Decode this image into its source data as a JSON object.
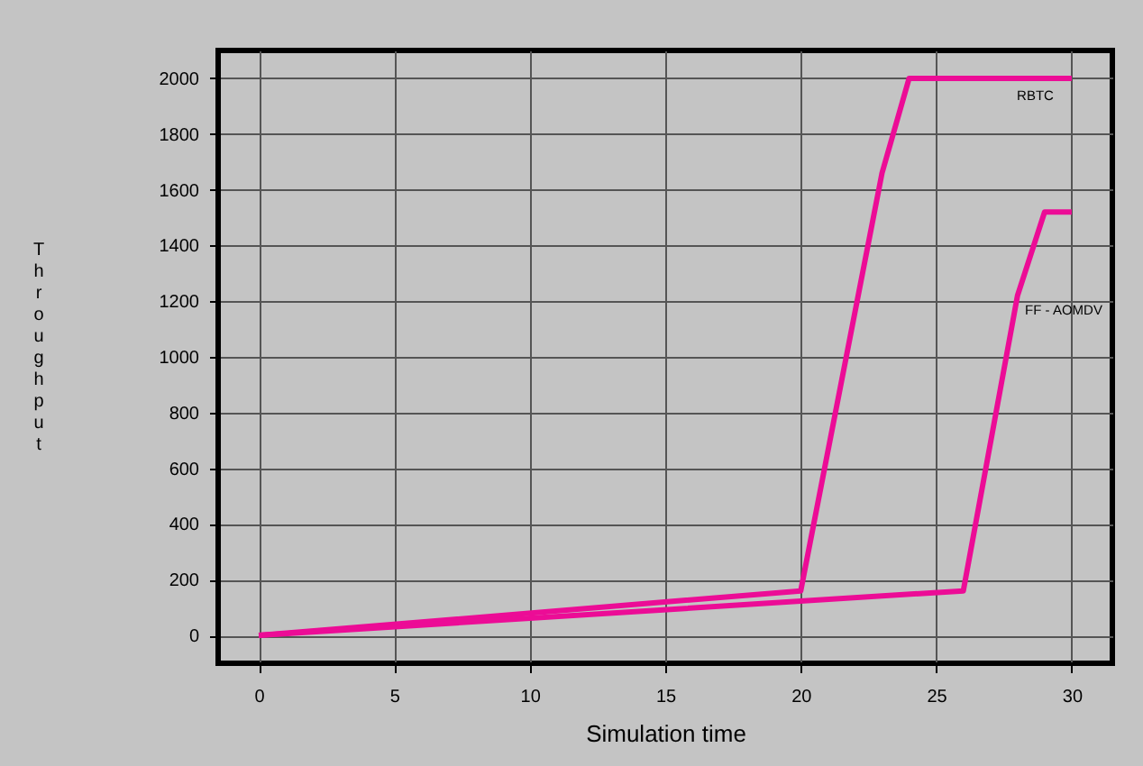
{
  "chart_data": {
    "type": "line",
    "xlabel": "Simulation time",
    "ylabel": "Throughput",
    "xlim": [
      -1.5,
      31.5
    ],
    "xticks": [
      0,
      5,
      10,
      15,
      20,
      25,
      30
    ],
    "ylim": [
      -100,
      2100
    ],
    "yticks": [
      0,
      200,
      400,
      600,
      800,
      1000,
      1200,
      1400,
      1600,
      1800,
      2000
    ],
    "grid": true,
    "marker": "none",
    "line_style": "solid",
    "series": [
      {
        "name": "RBTC",
        "color": "#ec0c96",
        "x": [
          0,
          20,
          23,
          24,
          30
        ],
        "values": [
          0,
          160,
          1660,
          2000,
          2000
        ]
      },
      {
        "name": "FF - AOMDV",
        "color": "#ec0c96",
        "x": [
          0,
          26,
          28,
          29,
          30
        ],
        "values": [
          0,
          160,
          1220,
          1520,
          1520
        ]
      }
    ]
  }
}
